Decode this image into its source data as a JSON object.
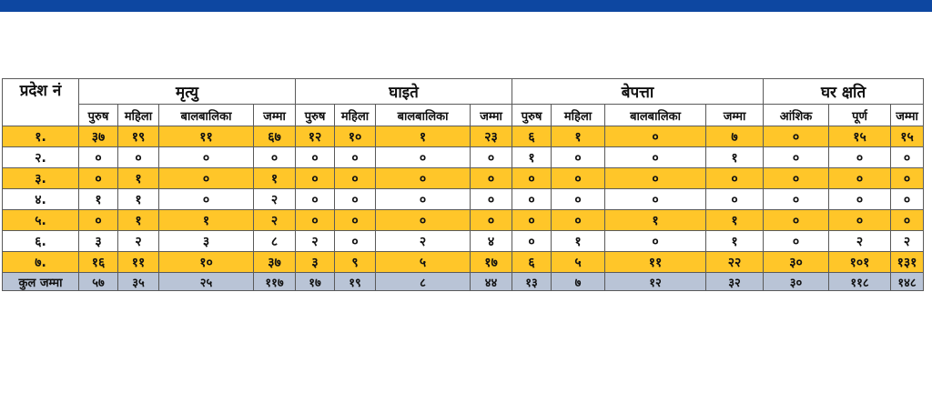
{
  "header": {
    "province_label": "प्रदेश नं",
    "groups": [
      "मृत्यु",
      "घाइते",
      "बेपत्ता",
      "घर क्षति"
    ],
    "sub_columns": [
      "पुरुष",
      "महिला",
      "बालबालिका",
      "जम्मा",
      "पुरुष",
      "महिला",
      "बालबालिका",
      "जम्मा",
      "पुरुष",
      "महिला",
      "बालबालिका",
      "जम्मा",
      "आंशिक",
      "पूर्ण",
      "जम्मा"
    ]
  },
  "rows": [
    {
      "label": "१.",
      "values": [
        "३७",
        "१९",
        "११",
        "६७",
        "१२",
        "१०",
        "१",
        "२३",
        "६",
        "१",
        "०",
        "७",
        "०",
        "१५",
        "१५"
      ]
    },
    {
      "label": "२.",
      "values": [
        "०",
        "०",
        "०",
        "०",
        "०",
        "०",
        "०",
        "०",
        "१",
        "०",
        "०",
        "१",
        "०",
        "०",
        "०"
      ]
    },
    {
      "label": "३.",
      "values": [
        "०",
        "१",
        "०",
        "१",
        "०",
        "०",
        "०",
        "०",
        "०",
        "०",
        "०",
        "०",
        "०",
        "०",
        "०"
      ]
    },
    {
      "label": "४.",
      "values": [
        "१",
        "१",
        "०",
        "२",
        "०",
        "०",
        "०",
        "०",
        "०",
        "०",
        "०",
        "०",
        "०",
        "०",
        "०"
      ]
    },
    {
      "label": "५.",
      "values": [
        "०",
        "१",
        "१",
        "२",
        "०",
        "०",
        "०",
        "०",
        "०",
        "०",
        "१",
        "१",
        "०",
        "०",
        "०"
      ]
    },
    {
      "label": "६.",
      "values": [
        "३",
        "२",
        "३",
        "८",
        "२",
        "०",
        "२",
        "४",
        "०",
        "१",
        "०",
        "१",
        "०",
        "२",
        "२"
      ]
    },
    {
      "label": "७.",
      "values": [
        "१६",
        "११",
        "१०",
        "३७",
        "३",
        "९",
        "५",
        "१७",
        "६",
        "५",
        "११",
        "२२",
        "३०",
        "१०१",
        "१३१"
      ]
    }
  ],
  "total": {
    "label": "कुल जम्मा",
    "values": [
      "५७",
      "३५",
      "२५",
      "११७",
      "१७",
      "१९",
      "८",
      "४४",
      "१३",
      "७",
      "१२",
      "३२",
      "३०",
      "११८",
      "१४८"
    ]
  },
  "colors": {
    "top_bar": "#0d47a1",
    "row_highlight": "#ffc629",
    "total_row": "#b9c4d6"
  }
}
